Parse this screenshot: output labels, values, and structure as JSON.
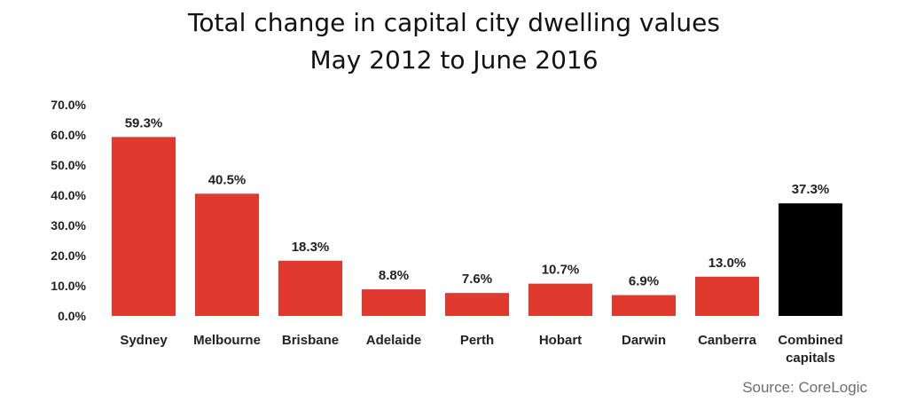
{
  "chart_data": {
    "type": "bar",
    "title_lines": [
      "Total change in capital city dwelling values",
      "May 2012 to June 2016"
    ],
    "categories": [
      "Sydney",
      "Melbourne",
      "Brisbane",
      "Adelaide",
      "Perth",
      "Hobart",
      "Darwin",
      "Canberra",
      "Combined capitals"
    ],
    "category_lines": [
      [
        "Sydney"
      ],
      [
        "Melbourne"
      ],
      [
        "Brisbane"
      ],
      [
        "Adelaide"
      ],
      [
        "Perth"
      ],
      [
        "Hobart"
      ],
      [
        "Darwin"
      ],
      [
        "Canberra"
      ],
      [
        "Combined",
        "capitals"
      ]
    ],
    "values": [
      59.3,
      40.5,
      18.3,
      8.8,
      7.6,
      10.7,
      6.9,
      13.0,
      37.3
    ],
    "data_labels": [
      "59.3%",
      "40.5%",
      "18.3%",
      "8.8%",
      "7.6%",
      "10.7%",
      "6.9%",
      "13.0%",
      "37.3%"
    ],
    "yticks": [
      0,
      10,
      20,
      30,
      40,
      50,
      60,
      70
    ],
    "ytick_labels": [
      "0.0%",
      "10.0%",
      "20.0%",
      "30.0%",
      "40.0%",
      "50.0%",
      "60.0%",
      "70.0%"
    ],
    "ylim": [
      0,
      70
    ],
    "xlabel": "",
    "ylabel": "",
    "grid": false,
    "bar_colors": [
      "#e03a2f",
      "#e03a2f",
      "#e03a2f",
      "#e03a2f",
      "#e03a2f",
      "#e03a2f",
      "#e03a2f",
      "#e03a2f",
      "#000000"
    ],
    "source": "Source: CoreLogic"
  }
}
